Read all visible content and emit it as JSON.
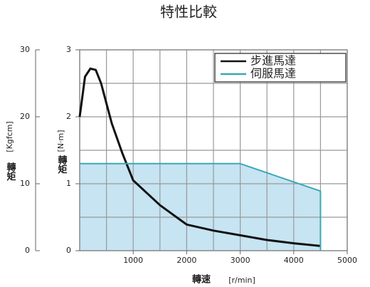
{
  "chart_data": {
    "type": "line",
    "title": "特性比較",
    "xlabel": "轉速",
    "xunit": "[r/min]",
    "ylabel": "轉矩",
    "yunit": "[N·m]",
    "y2label": "轉矩",
    "y2unit": "[Kgfcm]",
    "xlim": [
      0,
      5000
    ],
    "xticks": [
      1000,
      2000,
      3000,
      4000,
      5000
    ],
    "ylim": [
      0,
      3
    ],
    "yticks": [
      0,
      1,
      2,
      3
    ],
    "y2lim": [
      0,
      30
    ],
    "y2ticks": [
      0,
      10,
      20,
      30
    ],
    "x_grid_step": 500,
    "y_grid_step": 0.5,
    "grid": true,
    "legend": "upper right",
    "series": [
      {
        "name": "步進馬達",
        "color": "#111111",
        "x": [
          0,
          100,
          200,
          300,
          400,
          500,
          600,
          800,
          1000,
          1500,
          2000,
          2500,
          3000,
          3500,
          4000,
          4500
        ],
        "values": [
          2.0,
          2.6,
          2.72,
          2.7,
          2.5,
          2.2,
          1.9,
          1.45,
          1.05,
          0.68,
          0.39,
          0.3,
          0.23,
          0.16,
          0.11,
          0.07
        ]
      },
      {
        "name": "伺服馬達",
        "color": "#3aa8b8",
        "fill": "#c6e4f2",
        "x": [
          0,
          3000,
          4500
        ],
        "values": [
          1.3,
          1.3,
          0.89
        ]
      }
    ]
  }
}
